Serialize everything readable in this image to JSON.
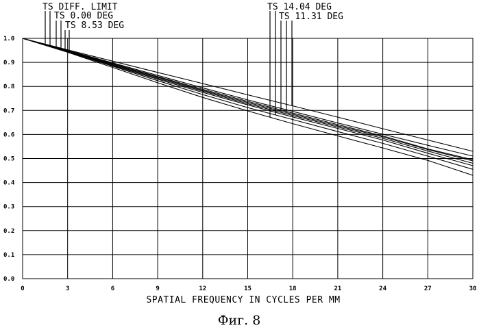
{
  "chart_data": {
    "type": "line",
    "xlabel": "SPATIAL FREQUENCY IN CYCLES PER MM",
    "ylabel": "",
    "xlim": [
      0,
      30
    ],
    "ylim": [
      0.0,
      1.0
    ],
    "x_ticks": [
      "0",
      "3",
      "6",
      "9",
      "12",
      "15",
      "18",
      "21",
      "24",
      "27",
      "30"
    ],
    "y_ticks": [
      "0.0",
      "0.1",
      "0.2",
      "0.3",
      "0.4",
      "0.5",
      "0.6",
      "0.7",
      "0.8",
      "0.9",
      "1.0"
    ],
    "grid": true,
    "legend_entries": [
      {
        "label": "TS DIFF. LIMIT"
      },
      {
        "label": "TS 0.00 DEG"
      },
      {
        "label": "TS 8.53 DEG"
      },
      {
        "label": "TS 14.04 DEG"
      },
      {
        "label": "TS 11.31 DEG"
      }
    ],
    "x": [
      0,
      3,
      6,
      9,
      12,
      15,
      18,
      21,
      24,
      27,
      30
    ],
    "series": [
      {
        "values": [
          1.0,
          0.952,
          0.905,
          0.858,
          0.812,
          0.765,
          0.719,
          0.672,
          0.624,
          0.577,
          0.53
        ]
      },
      {
        "values": [
          1.0,
          0.95,
          0.898,
          0.846,
          0.794,
          0.744,
          0.696,
          0.648,
          0.601,
          0.555,
          0.51
        ]
      },
      {
        "values": [
          1.0,
          0.948,
          0.895,
          0.841,
          0.788,
          0.738,
          0.689,
          0.641,
          0.594,
          0.54,
          0.495
        ]
      },
      {
        "values": [
          1.0,
          0.947,
          0.893,
          0.838,
          0.784,
          0.733,
          0.684,
          0.636,
          0.59,
          0.537,
          0.49
        ]
      },
      {
        "values": [
          1.0,
          0.946,
          0.89,
          0.834,
          0.78,
          0.728,
          0.679,
          0.631,
          0.584,
          0.531,
          0.48
        ]
      },
      {
        "values": [
          1.0,
          0.945,
          0.887,
          0.83,
          0.775,
          0.723,
          0.673,
          0.625,
          0.577,
          0.522,
          0.47
        ]
      },
      {
        "values": [
          1.0,
          0.944,
          0.884,
          0.824,
          0.766,
          0.712,
          0.662,
          0.612,
          0.563,
          0.51,
          0.455
        ]
      },
      {
        "values": [
          1.0,
          0.942,
          0.879,
          0.815,
          0.754,
          0.698,
          0.645,
          0.594,
          0.544,
          0.492,
          0.43
        ]
      }
    ]
  },
  "caption": "Фиг. 8"
}
